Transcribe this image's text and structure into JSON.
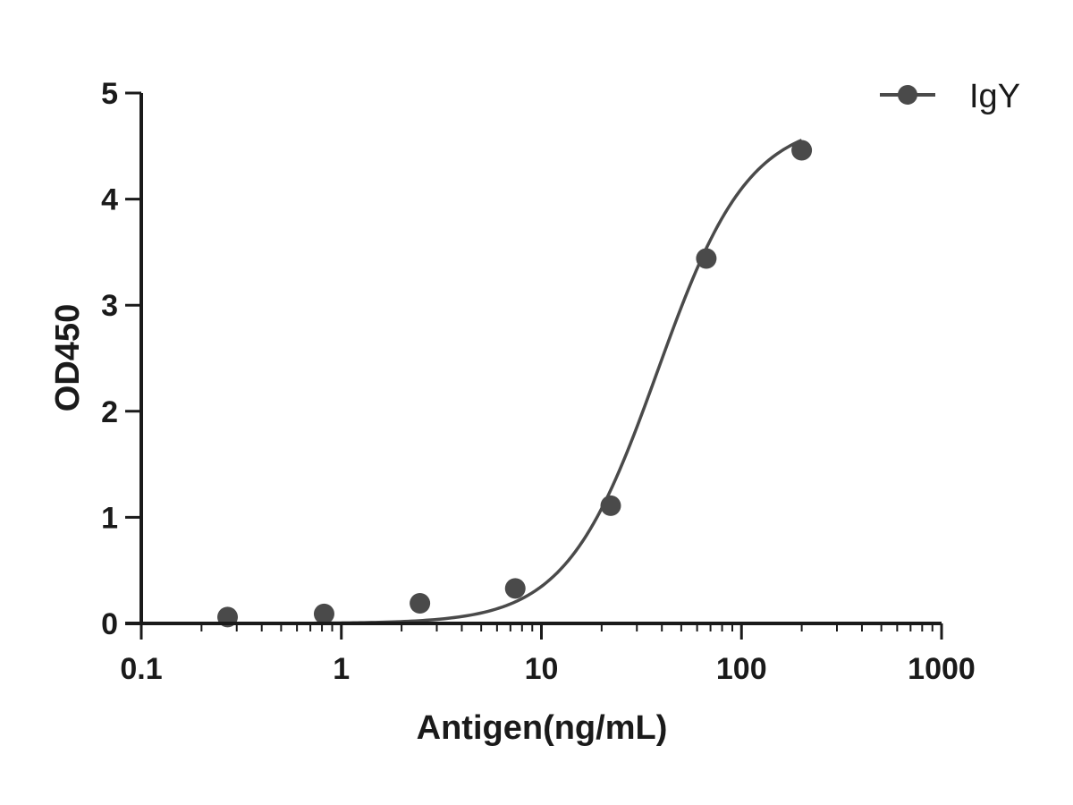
{
  "chart_data": {
    "type": "scatter",
    "xlabel": "Antigen(ng/mL)",
    "ylabel": "OD450",
    "xscale": "log",
    "xlim": [
      0.1,
      1000
    ],
    "ylim": [
      0,
      5
    ],
    "x_ticks": [
      0.1,
      1,
      10,
      100,
      1000
    ],
    "x_tick_labels": [
      "0.1",
      "1",
      "10",
      "100",
      "1000"
    ],
    "y_ticks": [
      0,
      1,
      2,
      3,
      4,
      5
    ],
    "y_tick_labels": [
      "0",
      "1",
      "2",
      "3",
      "4",
      "5"
    ],
    "grid": false,
    "legend_position": "top-right",
    "series": [
      {
        "name": "IgY",
        "color": "#4a4a4a",
        "x": [
          0.27,
          0.82,
          2.47,
          7.4,
          22.2,
          66.7,
          200
        ],
        "y": [
          0.06,
          0.09,
          0.19,
          0.33,
          1.11,
          3.44,
          4.46
        ],
        "fit": "4-parameter logistic",
        "fit_params": {
          "bottom": 0.0,
          "top": 4.75,
          "ec50": 38,
          "hill": 1.9
        }
      }
    ]
  }
}
